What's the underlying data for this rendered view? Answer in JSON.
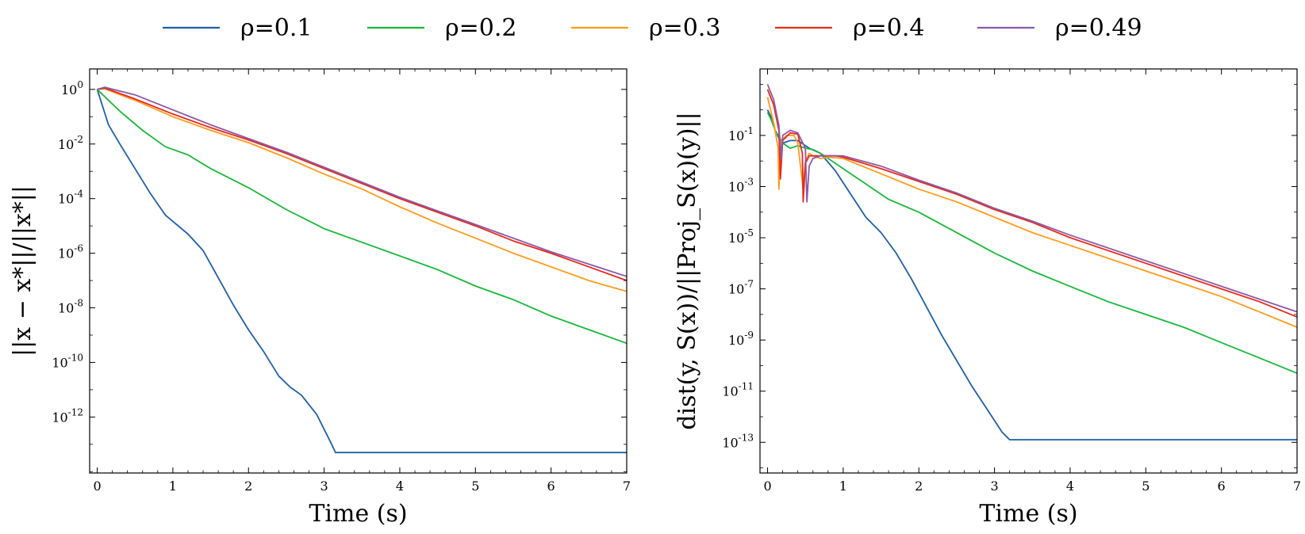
{
  "legend": [
    {
      "label": "ρ=0.1",
      "color": "#1f5fa8"
    },
    {
      "label": "ρ=0.2",
      "color": "#1ab83a"
    },
    {
      "label": "ρ=0.3",
      "color": "#ff9a1a"
    },
    {
      "label": "ρ=0.4",
      "color": "#e8281a"
    },
    {
      "label": "ρ=0.49",
      "color": "#8c5aa8"
    }
  ],
  "chart_data": [
    {
      "type": "line",
      "yscale": "log",
      "xlabel": "Time (s)",
      "ylabel": "||x − x*||/||x*||",
      "xlim": [
        -0.1,
        7
      ],
      "ylim_log10": [
        -14.05,
        0.75
      ],
      "xticks": [
        0,
        1,
        2,
        3,
        4,
        5,
        6,
        7
      ],
      "xtick_labels": [
        "0",
        "1",
        "2",
        "3",
        "4",
        "5",
        "6",
        "7"
      ],
      "yticks_log10": [
        0,
        -2,
        -4,
        -6,
        -8,
        -10,
        -12
      ],
      "ytick_labels": [
        {
          "base": "10",
          "exp": "0"
        },
        {
          "base": "10",
          "exp": "-2"
        },
        {
          "base": "10",
          "exp": "-4"
        },
        {
          "base": "10",
          "exp": "-6"
        },
        {
          "base": "10",
          "exp": "-8"
        },
        {
          "base": "10",
          "exp": "-10"
        },
        {
          "base": "10",
          "exp": "-12"
        }
      ],
      "series": [
        {
          "name": "ρ=0.1",
          "x": [
            0,
            0.15,
            0.3,
            0.5,
            0.7,
            0.9,
            1.2,
            1.4,
            1.6,
            1.8,
            2.0,
            2.2,
            2.4,
            2.55,
            2.7,
            2.9,
            3.1,
            3.15,
            7.0
          ],
          "log10y": [
            0,
            -1.3,
            -2.0,
            -2.9,
            -3.8,
            -4.6,
            -5.3,
            -5.9,
            -6.9,
            -7.9,
            -8.8,
            -9.6,
            -10.5,
            -10.9,
            -11.2,
            -11.9,
            -13.0,
            -13.3,
            -13.3
          ]
        },
        {
          "name": "ρ=0.2",
          "x": [
            0,
            0.3,
            0.6,
            0.9,
            1.2,
            1.5,
            2.0,
            2.5,
            3.0,
            3.5,
            4.0,
            4.5,
            5.0,
            5.5,
            6.0,
            6.5,
            7.0
          ],
          "log10y": [
            0,
            -0.8,
            -1.5,
            -2.1,
            -2.4,
            -2.9,
            -3.6,
            -4.4,
            -5.1,
            -5.6,
            -6.1,
            -6.6,
            -7.2,
            -7.7,
            -8.3,
            -8.8,
            -9.3
          ]
        },
        {
          "name": "ρ=0.3",
          "x": [
            0,
            0.1,
            0.5,
            1.0,
            1.5,
            2.0,
            2.5,
            3.0,
            3.5,
            4.0,
            4.5,
            5.0,
            5.5,
            6.0,
            6.5,
            7.0
          ],
          "log10y": [
            0,
            0.02,
            -0.4,
            -1.0,
            -1.5,
            -1.95,
            -2.5,
            -3.1,
            -3.65,
            -4.3,
            -4.9,
            -5.45,
            -6.0,
            -6.5,
            -7.0,
            -7.4
          ]
        },
        {
          "name": "ρ=0.4",
          "x": [
            0,
            0.1,
            0.5,
            1.0,
            1.5,
            2.0,
            2.5,
            3.0,
            3.5,
            4.0,
            4.5,
            5.0,
            5.5,
            6.0,
            6.5,
            7.0
          ],
          "log10y": [
            0,
            0.05,
            -0.35,
            -0.9,
            -1.4,
            -1.85,
            -2.35,
            -2.9,
            -3.45,
            -4.0,
            -4.5,
            -5.0,
            -5.55,
            -6.0,
            -6.5,
            -7.0
          ]
        },
        {
          "name": "ρ=0.49",
          "x": [
            0,
            0.1,
            0.5,
            1.0,
            1.5,
            2.0,
            2.5,
            3.0,
            3.5,
            4.0,
            4.5,
            5.0,
            5.5,
            6.0,
            6.5,
            7.0
          ],
          "log10y": [
            0,
            0.08,
            -0.2,
            -0.75,
            -1.3,
            -1.8,
            -2.3,
            -2.85,
            -3.4,
            -3.95,
            -4.45,
            -4.95,
            -5.45,
            -5.95,
            -6.4,
            -6.85
          ]
        }
      ]
    },
    {
      "type": "line",
      "yscale": "log",
      "xlabel": "Time (s)",
      "ylabel": "dist(y, S(x))/||Proj_S(x)(y)||",
      "xlim": [
        -0.1,
        7
      ],
      "ylim_log10": [
        -14.2,
        1.6
      ],
      "xticks": [
        0,
        1,
        2,
        3,
        4,
        5,
        6,
        7
      ],
      "xtick_labels": [
        "0",
        "1",
        "2",
        "3",
        "4",
        "5",
        "6",
        "7"
      ],
      "yticks_log10": [
        -1,
        -3,
        -5,
        -7,
        -9,
        -11,
        -13
      ],
      "ytick_labels": [
        {
          "base": "10",
          "exp": "-1"
        },
        {
          "base": "10",
          "exp": "-3"
        },
        {
          "base": "10",
          "exp": "-5"
        },
        {
          "base": "10",
          "exp": "-7"
        },
        {
          "base": "10",
          "exp": "-9"
        },
        {
          "base": "10",
          "exp": "-11"
        },
        {
          "base": "10",
          "exp": "-13"
        }
      ],
      "series": [
        {
          "name": "ρ=0.1",
          "x": [
            0,
            0.05,
            0.1,
            0.15,
            0.2,
            0.3,
            0.4,
            0.55,
            0.7,
            0.9,
            1.1,
            1.3,
            1.5,
            1.7,
            1.9,
            2.1,
            2.3,
            2.5,
            2.7,
            2.9,
            3.1,
            3.2,
            7.0
          ],
          "log10y": [
            0,
            -0.3,
            -0.8,
            -1.1,
            -1.3,
            -1.2,
            -1.2,
            -1.5,
            -1.7,
            -2.4,
            -3.3,
            -4.2,
            -4.8,
            -5.6,
            -6.6,
            -7.7,
            -8.8,
            -9.8,
            -10.8,
            -11.7,
            -12.6,
            -12.9,
            -12.9
          ]
        },
        {
          "name": "ρ=0.2",
          "x": [
            0,
            0.05,
            0.1,
            0.2,
            0.3,
            0.4,
            0.5,
            0.6,
            0.7,
            1.0,
            1.3,
            1.6,
            2.0,
            2.5,
            3.0,
            3.5,
            4.0,
            4.5,
            5.0,
            5.5,
            6.0,
            6.5,
            7.0
          ],
          "log10y": [
            -0.1,
            -0.4,
            -0.8,
            -1.3,
            -1.5,
            -1.4,
            -1.5,
            -1.55,
            -1.7,
            -2.3,
            -2.9,
            -3.5,
            -4.0,
            -4.8,
            -5.6,
            -6.3,
            -6.9,
            -7.5,
            -8.0,
            -8.5,
            -9.1,
            -9.7,
            -10.3
          ]
        },
        {
          "name": "ρ=0.3",
          "x": [
            0,
            0.08,
            0.14,
            0.15,
            0.18,
            0.25,
            0.35,
            0.4,
            0.47,
            0.5,
            0.55,
            0.6,
            0.7,
            0.8,
            1.0,
            1.5,
            2.0,
            2.5,
            3.0,
            3.5,
            4.0,
            4.5,
            5.0,
            5.5,
            6.0,
            6.5,
            7.0
          ],
          "log10y": [
            0.5,
            -0.5,
            -1.5,
            -3.1,
            -1.2,
            -1.0,
            -1.0,
            -1.3,
            -3.1,
            -2.0,
            -1.7,
            -1.8,
            -1.9,
            -1.85,
            -1.9,
            -2.5,
            -3.1,
            -3.6,
            -4.2,
            -4.8,
            -5.3,
            -5.8,
            -6.3,
            -6.8,
            -7.3,
            -7.9,
            -8.5
          ]
        },
        {
          "name": "ρ=0.4",
          "x": [
            0,
            0.08,
            0.15,
            0.17,
            0.2,
            0.3,
            0.4,
            0.46,
            0.47,
            0.5,
            0.55,
            0.7,
            0.9,
            1.0,
            1.5,
            2.0,
            2.5,
            3.0,
            3.5,
            4.0,
            4.5,
            5.0,
            5.5,
            6.0,
            6.5,
            7.0
          ],
          "log10y": [
            0.8,
            0.2,
            -0.8,
            -2.7,
            -1.2,
            -0.9,
            -0.95,
            -1.7,
            -3.6,
            -2.1,
            -1.8,
            -1.8,
            -1.8,
            -1.85,
            -2.3,
            -2.8,
            -3.3,
            -3.9,
            -4.4,
            -5.0,
            -5.5,
            -6.0,
            -6.5,
            -7.0,
            -7.5,
            -8.1
          ]
        },
        {
          "name": "ρ=0.49",
          "x": [
            0,
            0.08,
            0.15,
            0.18,
            0.2,
            0.3,
            0.4,
            0.5,
            0.52,
            0.55,
            0.6,
            0.7,
            0.9,
            1.0,
            1.5,
            2.0,
            2.5,
            3.0,
            3.5,
            4.0,
            4.5,
            5.0,
            5.5,
            6.0,
            6.5,
            7.0
          ],
          "log10y": [
            1.0,
            0.4,
            -0.6,
            -1.9,
            -1.0,
            -0.8,
            -0.9,
            -1.5,
            -3.6,
            -2.2,
            -1.9,
            -1.8,
            -1.8,
            -1.8,
            -2.2,
            -2.75,
            -3.25,
            -3.85,
            -4.35,
            -4.9,
            -5.4,
            -5.9,
            -6.4,
            -6.9,
            -7.4,
            -7.9
          ]
        }
      ]
    }
  ]
}
